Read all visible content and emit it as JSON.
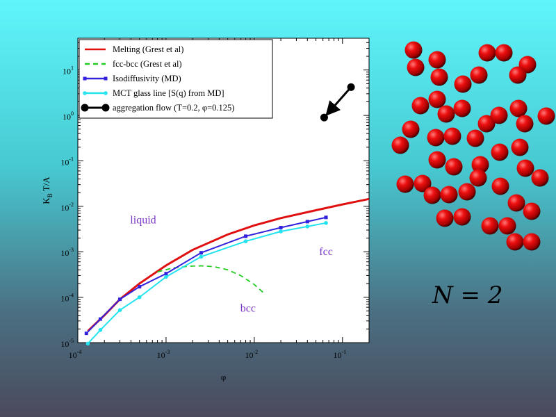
{
  "chart_data": {
    "type": "line",
    "log_x": true,
    "log_y": true,
    "xlabel": "φ",
    "ylabel": "K_B T/A",
    "xlim": [
      0.0001,
      0.2
    ],
    "ylim": [
      1e-05,
      50
    ],
    "x_ticks": [
      {
        "value": 0.0001,
        "base": "10",
        "exp": "-4"
      },
      {
        "value": 0.001,
        "base": "10",
        "exp": "-3"
      },
      {
        "value": 0.01,
        "base": "10",
        "exp": "-2"
      },
      {
        "value": 0.1,
        "base": "10",
        "exp": "-1"
      }
    ],
    "y_ticks": [
      {
        "value": 1e-05,
        "base": "10",
        "exp": "-5"
      },
      {
        "value": 0.0001,
        "base": "10",
        "exp": "-4"
      },
      {
        "value": 0.001,
        "base": "10",
        "exp": "-3"
      },
      {
        "value": 0.01,
        "base": "10",
        "exp": "-2"
      },
      {
        "value": 0.1,
        "base": "10",
        "exp": "-1"
      },
      {
        "value": 1,
        "base": "10",
        "exp": "0"
      },
      {
        "value": 10,
        "base": "10",
        "exp": "1"
      }
    ],
    "series": [
      {
        "name": "Melting  (Grest et al)",
        "color": "#e01010",
        "style": "solid",
        "marker": "none",
        "x": [
          0.00013,
          0.0002,
          0.0003,
          0.0005,
          0.001,
          0.002,
          0.005,
          0.01,
          0.02,
          0.05,
          0.1,
          0.2
        ],
        "y": [
          1.8e-05,
          4e-05,
          9e-05,
          0.0002,
          0.0005,
          0.0011,
          0.0024,
          0.0038,
          0.0055,
          0.0082,
          0.011,
          0.0145
        ]
      },
      {
        "name": "fcc-bcc (Grest et al)",
        "color": "#22cc22",
        "style": "dashed",
        "marker": "none",
        "x": [
          0.0008,
          0.0012,
          0.0018,
          0.0025,
          0.0035,
          0.005,
          0.007,
          0.01,
          0.013
        ],
        "y": [
          0.00036,
          0.00044,
          0.00048,
          0.00049,
          0.00047,
          0.0004,
          0.0003,
          0.00019,
          0.00012
        ]
      },
      {
        "name": "Isodiffusivity (MD)",
        "color": "#3322dd",
        "style": "solid",
        "marker": "square",
        "x": [
          0.000125,
          0.00018,
          0.0003,
          0.0005,
          0.001,
          0.0025,
          0.008,
          0.02,
          0.04,
          0.065
        ],
        "y": [
          1.6e-05,
          3.3e-05,
          9e-05,
          0.00017,
          0.00033,
          0.00095,
          0.0022,
          0.0034,
          0.0046,
          0.0057
        ]
      },
      {
        "name": "MCT glass line [S(q) from MD]",
        "color": "#22e3ee",
        "style": "solid",
        "marker": "circle",
        "x": [
          0.00013,
          0.00018,
          0.0003,
          0.0005,
          0.001,
          0.0025,
          0.008,
          0.02,
          0.04,
          0.065
        ],
        "y": [
          9.5e-06,
          1.9e-05,
          5.2e-05,
          0.0001,
          0.00028,
          0.00078,
          0.0017,
          0.0028,
          0.0036,
          0.0043
        ]
      },
      {
        "name": "aggregation flow (T=0.2, φ=0.125)",
        "color": "#000000",
        "style": "solid",
        "marker": "big-circle",
        "arrow": true,
        "x": [
          0.125,
          0.062
        ],
        "y": [
          4.2,
          0.9
        ]
      }
    ],
    "annotations": [
      {
        "text": "liquid",
        "x": 0.00055,
        "y": 0.0042
      },
      {
        "text": "fcc",
        "x": 0.065,
        "y": 0.00085
      },
      {
        "text": "bcc",
        "x": 0.0085,
        "y": 4.8e-05
      }
    ],
    "legend_position": "top-left",
    "grid": false
  },
  "n_label": "N = 2",
  "particles_icon": "red-sphere-cluster"
}
